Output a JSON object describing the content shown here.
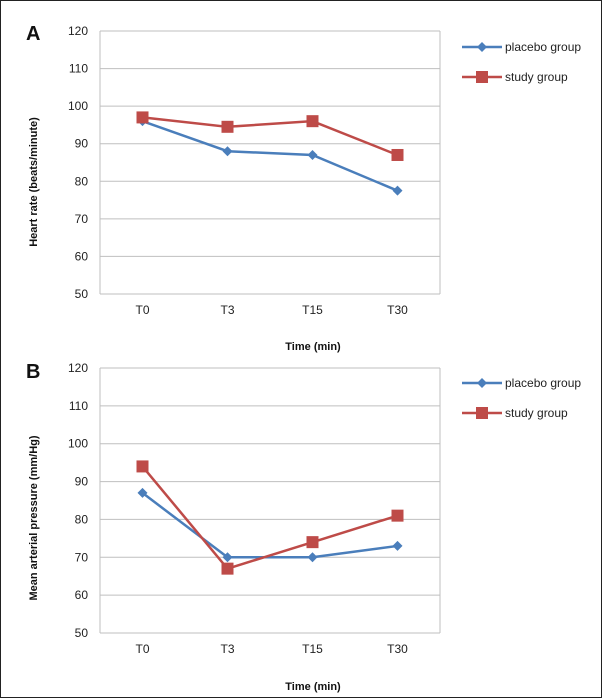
{
  "chart_data": [
    {
      "panel": "A",
      "type": "line",
      "categories": [
        "T0",
        "T3",
        "T15",
        "T30"
      ],
      "series": [
        {
          "name": "placebo group",
          "values": [
            96,
            88,
            87,
            77.5
          ],
          "color": "#4a7ebb",
          "marker": "diamond"
        },
        {
          "name": "study group",
          "values": [
            97,
            94.5,
            96,
            87
          ],
          "color": "#be4b48",
          "marker": "square"
        }
      ],
      "xlabel": "Time (min)",
      "ylabel": "Heart rate (beats/minute)",
      "ylim": [
        50,
        120
      ],
      "yticks": [
        50,
        60,
        70,
        80,
        90,
        100,
        110,
        120
      ],
      "grid": true,
      "legend": "right"
    },
    {
      "panel": "B",
      "type": "line",
      "categories": [
        "T0",
        "T3",
        "T15",
        "T30"
      ],
      "series": [
        {
          "name": "placebo group",
          "values": [
            87,
            70,
            70,
            73
          ],
          "color": "#4a7ebb",
          "marker": "diamond"
        },
        {
          "name": "study group",
          "values": [
            94,
            67,
            74,
            81
          ],
          "color": "#be4b48",
          "marker": "square"
        }
      ],
      "xlabel": "Time (min)",
      "ylabel": "Mean arterial pressure (mm/Hg)",
      "ylim": [
        50,
        120
      ],
      "yticks": [
        50,
        60,
        70,
        80,
        90,
        100,
        110,
        120
      ],
      "grid": true,
      "legend": "right"
    }
  ]
}
